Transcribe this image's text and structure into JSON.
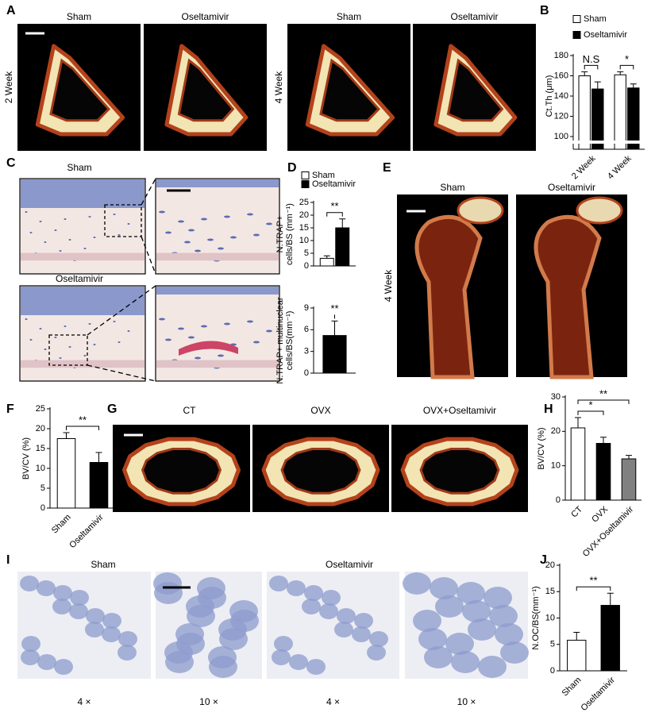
{
  "letters": [
    "A",
    "B",
    "C",
    "D",
    "E",
    "F",
    "G",
    "H",
    "I",
    "J"
  ],
  "a": {
    "columns": [
      "Sham",
      "Oseltamivir",
      "Sham",
      "Oseltamivir"
    ],
    "rows": [
      "2 Week",
      "4 Week"
    ]
  },
  "c": {
    "labels": [
      "Sham",
      "Oseltamivir"
    ]
  },
  "e": {
    "labels": [
      "Sham",
      "Oseltamivir"
    ],
    "row": "4 Week"
  },
  "g": {
    "labels": [
      "CT",
      "OVX",
      "OVX+Oseltamivir"
    ]
  },
  "i": {
    "labels": [
      "Sham",
      "Oseltamivir"
    ],
    "magnifications": [
      "4 ×",
      "10 ×",
      "4 ×",
      "10 ×"
    ]
  },
  "chart_data": [
    {
      "type": "bar",
      "ylabel": [
        "Ct.Th (μm)"
      ],
      "ylim": [
        100,
        180
      ],
      "yticks": [
        100,
        120,
        140,
        160,
        180
      ],
      "axis_break": true,
      "legend": true,
      "categories": [
        "2 Week",
        "4 Week"
      ],
      "series": [
        {
          "name": "Sham",
          "color": "#ffffff",
          "values": [
            160,
            161
          ],
          "errors": [
            4,
            3
          ]
        },
        {
          "name": "Oseltamivir",
          "color": "#000000",
          "values": [
            147,
            148
          ],
          "errors": [
            7,
            4
          ]
        }
      ],
      "annotations": [
        "N.S",
        "*"
      ]
    },
    {
      "type": "bar",
      "ylabel": [
        "N.TRAP+",
        "cells/BS (mm⁻¹)"
      ],
      "ylim": [
        0,
        25
      ],
      "yticks": [
        0,
        5,
        10,
        15,
        20,
        25
      ],
      "legend": true,
      "series": [
        {
          "name": "Sham",
          "color": "#ffffff",
          "values": [
            3
          ],
          "errors": [
            1
          ]
        },
        {
          "name": "Oseltamivir",
          "color": "#000000",
          "values": [
            15
          ],
          "errors": [
            3.5
          ]
        }
      ],
      "annotations": [
        "**"
      ]
    },
    {
      "type": "bar",
      "ylabel": [
        "N.TRAP+ multinuclear",
        "cells/BS(mm⁻¹)"
      ],
      "ylim": [
        0,
        9
      ],
      "yticks": [
        0,
        3,
        6,
        9
      ],
      "values": [
        5.2
      ],
      "errors": [
        2
      ],
      "colors": [
        "#000000"
      ],
      "annotations": [
        "**"
      ]
    },
    {
      "type": "bar",
      "ylabel": [
        "BV/CV (%)"
      ],
      "ylim": [
        0,
        25
      ],
      "yticks": [
        0,
        5,
        10,
        15,
        20,
        25
      ],
      "categories": [
        "Sham",
        "Oseltamivir"
      ],
      "values": [
        17.5,
        11.5
      ],
      "errors": [
        1.5,
        2.5
      ],
      "colors": [
        "#ffffff",
        "#000000"
      ],
      "annotations": [
        "**"
      ]
    },
    {
      "type": "bar",
      "ylabel": [
        "BV/CV (%)"
      ],
      "ylim": [
        0,
        30
      ],
      "yticks": [
        0,
        10,
        20,
        30
      ],
      "categories": [
        "CT",
        "OVX",
        "OVX+Oseltamivir"
      ],
      "values": [
        21,
        16.5,
        12
      ],
      "errors": [
        3,
        1.8,
        1
      ],
      "colors": [
        "#ffffff",
        "#000000",
        "#808080"
      ],
      "annotations": [
        "*",
        "**"
      ]
    },
    {
      "type": "bar",
      "ylabel": [
        "N.OC/BS(mm⁻¹)"
      ],
      "ylim": [
        0,
        20
      ],
      "yticks": [
        0,
        5,
        10,
        15,
        20
      ],
      "categories": [
        "Sham",
        "Oseltamivir"
      ],
      "values": [
        5.8,
        12.4
      ],
      "errors": [
        1.5,
        2.3
      ],
      "colors": [
        "#ffffff",
        "#000000"
      ],
      "annotations": [
        "**"
      ]
    }
  ]
}
